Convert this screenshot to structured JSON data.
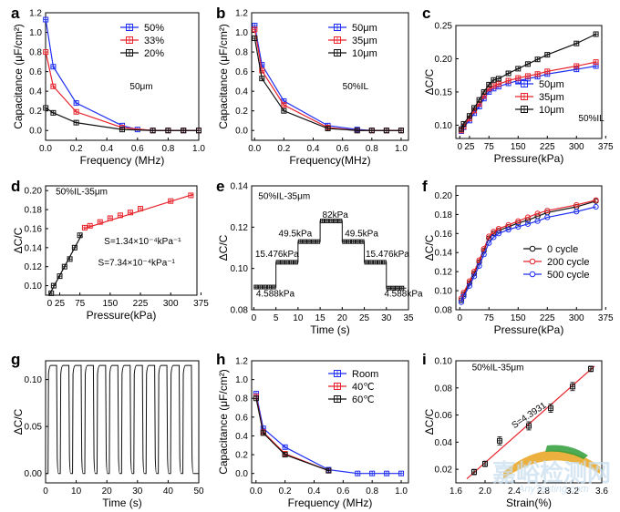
{
  "watermark": {
    "text": "嘉峪检测网",
    "url": "AnyTesting.com"
  },
  "chart_data": [
    {
      "panel": "a",
      "type": "line",
      "xlabel": "Frequency (MHz)",
      "ylabel": "Capacitance (μF/cm²)",
      "xlim": [
        0,
        1.0
      ],
      "ylim": [
        -0.1,
        1.2
      ],
      "xticks": [
        0.0,
        0.2,
        0.4,
        0.6,
        0.8,
        1.0
      ],
      "yticks": [
        0.0,
        0.2,
        0.4,
        0.6,
        0.8,
        1.0,
        1.2
      ],
      "legend_position": "top-right",
      "annotations": [
        {
          "text": "50μm",
          "x": 0.55,
          "y": 0.42
        }
      ],
      "series": [
        {
          "name": "50%",
          "color": "#1f2ff2",
          "x": [
            0.001,
            0.05,
            0.2,
            0.5,
            0.6,
            0.7,
            0.8,
            0.9,
            1.0
          ],
          "y": [
            1.13,
            0.65,
            0.28,
            0.05,
            0.01,
            0.0,
            0.0,
            0.0,
            0.0
          ]
        },
        {
          "name": "33%",
          "color": "#e8232b",
          "x": [
            0.001,
            0.05,
            0.2,
            0.5,
            0.7,
            0.8,
            0.9,
            1.0
          ],
          "y": [
            0.8,
            0.45,
            0.19,
            0.03,
            0.0,
            0.0,
            0.0,
            0.0
          ]
        },
        {
          "name": "20%",
          "color": "#111111",
          "x": [
            0.001,
            0.05,
            0.2,
            0.5,
            0.7,
            0.8,
            0.9,
            1.0
          ],
          "y": [
            0.23,
            0.18,
            0.08,
            0.01,
            0.0,
            0.0,
            0.0,
            0.0
          ]
        }
      ]
    },
    {
      "panel": "b",
      "type": "line",
      "xlabel": "Frequency(MHz)",
      "ylabel": "Capacitance (μF/cm²)",
      "xlim": [
        -0.02,
        1.05
      ],
      "ylim": [
        -0.1,
        1.2
      ],
      "xticks": [
        0.0,
        0.2,
        0.4,
        0.6,
        0.8,
        1.0
      ],
      "yticks": [
        0.0,
        0.2,
        0.4,
        0.6,
        0.8,
        1.0,
        1.2
      ],
      "legend_position": "top-right",
      "annotations": [
        {
          "text": "50%IL",
          "x": 0.6,
          "y": 0.42
        }
      ],
      "series": [
        {
          "name": "50μm",
          "color": "#1f2ff2",
          "x": [
            0.001,
            0.05,
            0.2,
            0.5,
            0.7,
            0.8,
            0.9,
            1.0
          ],
          "y": [
            1.07,
            0.67,
            0.3,
            0.05,
            0.01,
            0.0,
            0.0,
            0.0
          ]
        },
        {
          "name": "35μm",
          "color": "#e8232b",
          "x": [
            0.001,
            0.05,
            0.2,
            0.5,
            0.7,
            0.8,
            0.9,
            1.0
          ],
          "y": [
            1.03,
            0.61,
            0.26,
            0.03,
            0.0,
            0.0,
            0.0,
            0.0
          ]
        },
        {
          "name": "10μm",
          "color": "#111111",
          "x": [
            0.001,
            0.05,
            0.2,
            0.5,
            0.7,
            0.8,
            0.9,
            1.0
          ],
          "y": [
            0.94,
            0.53,
            0.2,
            0.02,
            0.0,
            0.0,
            0.0,
            0.0
          ]
        }
      ]
    },
    {
      "panel": "c",
      "type": "line",
      "xlabel": "Pressure(kPa)",
      "ylabel": "ΔC/C",
      "xlim": [
        -10,
        365
      ],
      "ylim": [
        0.08,
        0.25
      ],
      "xticks": [
        0,
        25,
        75,
        150,
        225,
        300,
        375
      ],
      "yticks": [
        0.1,
        0.15,
        0.2,
        0.25
      ],
      "legend_position": "bottom-right",
      "annotations": [
        {
          "text": "50%IL",
          "x": 305,
          "y": 0.106
        }
      ],
      "series": [
        {
          "name": "50μm",
          "color": "#1f2ff2",
          "x": [
            4,
            10,
            25,
            37,
            50,
            62,
            75,
            87,
            100,
            125,
            150,
            175,
            200,
            225,
            300,
            350
          ],
          "y": [
            0.091,
            0.097,
            0.107,
            0.118,
            0.128,
            0.14,
            0.15,
            0.155,
            0.158,
            0.163,
            0.167,
            0.17,
            0.173,
            0.177,
            0.184,
            0.189
          ]
        },
        {
          "name": "35μm",
          "color": "#e8232b",
          "x": [
            4,
            10,
            25,
            37,
            50,
            62,
            75,
            87,
            100,
            125,
            150,
            175,
            200,
            225,
            300,
            350
          ],
          "y": [
            0.092,
            0.098,
            0.11,
            0.122,
            0.132,
            0.144,
            0.155,
            0.159,
            0.162,
            0.167,
            0.171,
            0.174,
            0.177,
            0.181,
            0.189,
            0.195
          ]
        },
        {
          "name": "10μm",
          "color": "#111111",
          "x": [
            4,
            10,
            25,
            37,
            50,
            62,
            75,
            87,
            100,
            125,
            150,
            175,
            200,
            225,
            300,
            350
          ],
          "y": [
            0.094,
            0.102,
            0.114,
            0.126,
            0.138,
            0.15,
            0.161,
            0.168,
            0.17,
            0.178,
            0.185,
            0.192,
            0.199,
            0.206,
            0.223,
            0.237
          ]
        }
      ]
    },
    {
      "panel": "d",
      "type": "scatter",
      "xlabel": "Pressure(kPa)",
      "ylabel": "ΔC/C",
      "xlim": [
        -10,
        365
      ],
      "ylim": [
        0.09,
        0.205
      ],
      "xticks": [
        0,
        25,
        75,
        150,
        225,
        300,
        375
      ],
      "yticks": [
        0.1,
        0.12,
        0.14,
        0.16,
        0.18,
        0.2
      ],
      "annotations": [
        {
          "text": "50%IL-35μm",
          "x": 15,
          "y": 0.196,
          "color": "#000000"
        },
        {
          "text": "S=1.34×10⁻⁴kPa⁻¹",
          "x": 135,
          "y": 0.1435,
          "color": "#e8232b"
        },
        {
          "text": "S=7.34×10⁻⁴kPa⁻¹",
          "x": 120,
          "y": 0.121,
          "color": "#000000"
        }
      ],
      "series": [
        {
          "name": "",
          "color": "#111111",
          "x": [
            4,
            10,
            25,
            37,
            50,
            62,
            75
          ],
          "y": [
            0.092,
            0.1,
            0.11,
            0.12,
            0.128,
            0.14,
            0.153
          ]
        },
        {
          "name": "",
          "color": "#e8232b",
          "x": [
            87,
            100,
            125,
            150,
            175,
            200,
            225,
            300,
            350
          ],
          "y": [
            0.161,
            0.163,
            0.167,
            0.171,
            0.174,
            0.177,
            0.181,
            0.189,
            0.195
          ]
        }
      ],
      "fit_lines": [
        {
          "color": "#111111",
          "x": [
            0,
            80
          ],
          "y": [
            0.091,
            0.154
          ]
        },
        {
          "color": "#e8232b",
          "x": [
            85,
            355
          ],
          "y": [
            0.16,
            0.196
          ]
        }
      ]
    },
    {
      "panel": "e",
      "type": "line",
      "xlabel": "Time (s)",
      "ylabel": "ΔC/C",
      "xlim": [
        -0.5,
        35
      ],
      "ylim": [
        0.08,
        0.14
      ],
      "xticks": [
        0,
        5,
        10,
        15,
        20,
        25,
        30,
        35
      ],
      "yticks": [
        0.08,
        0.1,
        0.12,
        0.14
      ],
      "annotations": [
        {
          "text": "50%IL-35μm",
          "x": 1,
          "y": 0.1335
        },
        {
          "text": "4.588kPa",
          "x": 0.5,
          "y": 0.0865
        },
        {
          "text": "15.476kPa",
          "x": 0.3,
          "y": 0.1055
        },
        {
          "text": "49.5kPa",
          "x": 5.6,
          "y": 0.1155
        },
        {
          "text": "82kPa",
          "x": 15.5,
          "y": 0.1245
        },
        {
          "text": "49.5kPa",
          "x": 20.6,
          "y": 0.1155
        },
        {
          "text": "15.476kPa",
          "x": 25.3,
          "y": 0.1055
        },
        {
          "text": "4.588kPa",
          "x": 29.5,
          "y": 0.0865
        }
      ],
      "series": [
        {
          "name": "",
          "color": "#111111",
          "segments": [
            [
              0,
              5,
              0.091
            ],
            [
              5,
              10,
              0.103
            ],
            [
              10,
              15,
              0.113
            ],
            [
              15,
              20,
              0.123
            ],
            [
              20,
              25,
              0.113
            ],
            [
              25,
              30,
              0.103
            ],
            [
              30,
              34.5,
              0.0905
            ]
          ]
        }
      ]
    },
    {
      "panel": "f",
      "type": "line",
      "xlabel": "Pressure(kPa)",
      "ylabel": "ΔC/C",
      "xlim": [
        -10,
        365
      ],
      "ylim": [
        0.08,
        0.21
      ],
      "xticks": [
        0,
        75,
        150,
        225,
        300,
        375
      ],
      "yticks": [
        0.08,
        0.1,
        0.12,
        0.14,
        0.16,
        0.18,
        0.2
      ],
      "legend_position": "center-right",
      "series": [
        {
          "name": "0 cycle",
          "color": "#111111",
          "x": [
            4,
            10,
            25,
            37,
            50,
            62,
            75,
            87,
            100,
            125,
            150,
            175,
            200,
            225,
            300,
            350
          ],
          "y": [
            0.09,
            0.096,
            0.108,
            0.118,
            0.13,
            0.142,
            0.155,
            0.16,
            0.163,
            0.167,
            0.171,
            0.174,
            0.178,
            0.182,
            0.188,
            0.194
          ]
        },
        {
          "name": "200 cycle",
          "color": "#e8232b",
          "x": [
            4,
            10,
            25,
            37,
            50,
            62,
            75,
            87,
            100,
            125,
            150,
            175,
            200,
            225,
            300,
            350
          ],
          "y": [
            0.092,
            0.098,
            0.11,
            0.12,
            0.132,
            0.144,
            0.157,
            0.162,
            0.165,
            0.169,
            0.173,
            0.177,
            0.181,
            0.184,
            0.19,
            0.195
          ]
        },
        {
          "name": "500 cycle",
          "color": "#1f2ff2",
          "x": [
            4,
            10,
            25,
            37,
            50,
            62,
            75,
            87,
            100,
            125,
            150,
            175,
            200,
            225,
            300,
            350
          ],
          "y": [
            0.088,
            0.094,
            0.105,
            0.115,
            0.126,
            0.138,
            0.15,
            0.156,
            0.16,
            0.164,
            0.167,
            0.17,
            0.173,
            0.177,
            0.183,
            0.188
          ]
        }
      ]
    },
    {
      "panel": "g",
      "type": "line",
      "xlabel": "Time (s)",
      "ylabel": "ΔC/C",
      "xlim": [
        0,
        50
      ],
      "ylim": [
        -0.01,
        0.12
      ],
      "xticks": [
        0,
        10,
        20,
        30,
        40,
        50
      ],
      "yticks": [
        0.0,
        0.05,
        0.1
      ],
      "cycles": 12,
      "period_s": 4,
      "high": 0.115,
      "low": 0.0,
      "series": [
        {
          "name": "",
          "color": "#111111"
        }
      ]
    },
    {
      "panel": "h",
      "type": "line",
      "xlabel": "Frequency (MHz)",
      "ylabel": "Capacitance (μF/cm²)",
      "xlim": [
        -0.03,
        1.05
      ],
      "ylim": [
        -0.1,
        1.2
      ],
      "xticks": [
        0.0,
        0.2,
        0.4,
        0.6,
        0.8,
        1.0
      ],
      "yticks": [
        0.0,
        0.2,
        0.4,
        0.6,
        0.8,
        1.0,
        1.2
      ],
      "legend_position": "top-right",
      "series": [
        {
          "name": "Room",
          "color": "#1f2ff2",
          "x": [
            0.001,
            0.05,
            0.2,
            0.5,
            0.7,
            0.8,
            0.9,
            1.0
          ],
          "y": [
            0.85,
            0.48,
            0.28,
            0.04,
            0.0,
            0.0,
            0.0,
            0.0
          ]
        },
        {
          "name": "40℃",
          "color": "#e8232b",
          "x": [
            0.001,
            0.05,
            0.2,
            0.5
          ],
          "y": [
            0.82,
            0.44,
            0.21,
            0.03
          ]
        },
        {
          "name": "60℃",
          "color": "#111111",
          "x": [
            0.001,
            0.05,
            0.2,
            0.5
          ],
          "y": [
            0.8,
            0.43,
            0.2,
            0.03
          ]
        }
      ]
    },
    {
      "panel": "i",
      "type": "scatter",
      "xlabel": "Strain(%)",
      "ylabel": "ΔC/C",
      "xlim": [
        1.6,
        3.6
      ],
      "ylim": [
        0.01,
        0.1
      ],
      "xticks": [
        1.6,
        2.0,
        2.4,
        2.8,
        3.2,
        3.6
      ],
      "yticks": [
        0.02,
        0.04,
        0.06,
        0.08,
        0.1
      ],
      "annotations": [
        {
          "text": "50%IL-35μm",
          "x": 1.82,
          "y": 0.093
        },
        {
          "text": "S=4.3931",
          "x": 2.4,
          "y": 0.05,
          "rotate": -34
        }
      ],
      "series": [
        {
          "name": "",
          "color": "#111111",
          "x": [
            1.85,
            2.0,
            2.2,
            2.6,
            2.9,
            3.2,
            3.45
          ],
          "y": [
            0.018,
            0.024,
            0.041,
            0.052,
            0.065,
            0.081,
            0.094
          ],
          "err": [
            0.002,
            0.002,
            0.003,
            0.003,
            0.003,
            0.003,
            0.002
          ]
        }
      ],
      "fit_lines": [
        {
          "color": "#e8232b",
          "x": [
            1.75,
            3.5
          ],
          "y": [
            0.013,
            0.096
          ]
        }
      ]
    }
  ]
}
